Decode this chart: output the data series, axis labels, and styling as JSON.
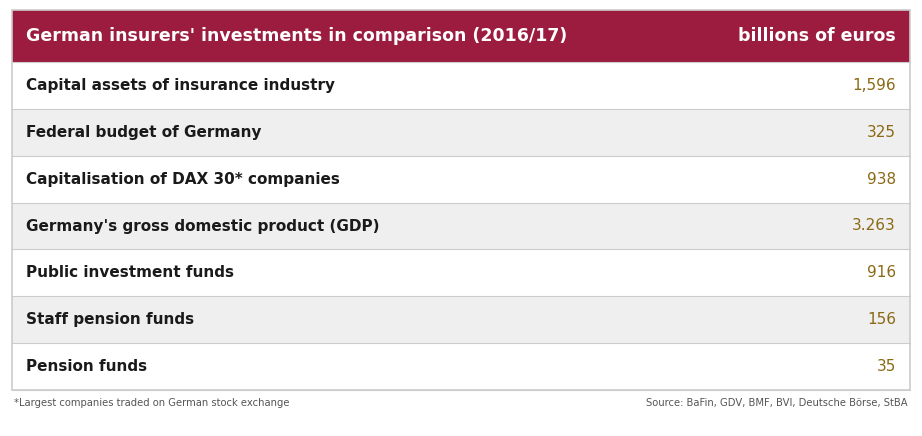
{
  "title": "German insurers' investments in comparison (2016/17)",
  "title_right": "billions of euros",
  "header_bg": "#9b1c3e",
  "header_text_color": "#ffffff",
  "rows": [
    {
      "label": "Capital assets of insurance industry",
      "value": "1,596",
      "bg": "#ffffff"
    },
    {
      "label": "Federal budget of Germany",
      "value": "325",
      "bg": "#efefef"
    },
    {
      "label": "Capitalisation of DAX 30* companies",
      "value": "938",
      "bg": "#ffffff"
    },
    {
      "label": "Germany's gross domestic product (GDP)",
      "value": "3.263",
      "bg": "#efefef"
    },
    {
      "label": "Public investment funds",
      "value": "916",
      "bg": "#ffffff"
    },
    {
      "label": "Staff pension funds",
      "value": "156",
      "bg": "#efefef"
    },
    {
      "label": "Pension funds",
      "value": "35",
      "bg": "#ffffff"
    }
  ],
  "value_color": "#8b6914",
  "label_color": "#1a1a1a",
  "footnote_left": "*Largest companies traded on German stock exchange",
  "footnote_right": "Source: BaFin, GDV, BMF, BVI, Deutsche Börse, StBA",
  "footnote_color": "#555555",
  "border_color": "#cccccc",
  "header_fontsize": 12.5,
  "row_label_fontsize": 11.0,
  "row_value_fontsize": 11.0,
  "footnote_fontsize": 7.2
}
